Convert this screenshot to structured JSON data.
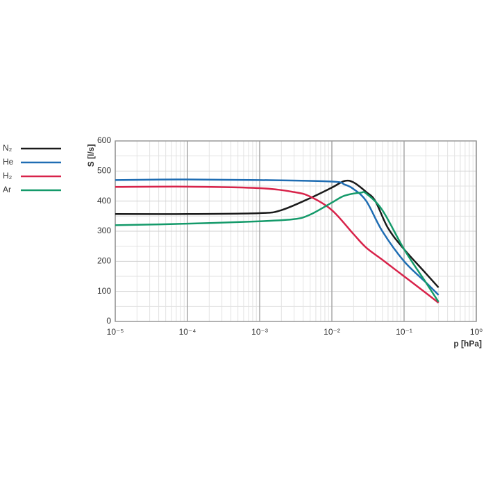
{
  "chart_data": {
    "type": "line",
    "xlabel": "p [hPa]",
    "ylabel": "S [l/s]",
    "xscale": "log",
    "grid": true,
    "legend": "left",
    "xlim": [
      1e-05,
      1
    ],
    "xticks": [
      {
        "value": 1e-05,
        "label": "10⁻⁵"
      },
      {
        "value": 0.0001,
        "label": "10⁻⁴"
      },
      {
        "value": 0.001,
        "label": "10⁻³"
      },
      {
        "value": 0.01,
        "label": "10⁻²"
      },
      {
        "value": 0.1,
        "label": "10⁻¹"
      },
      {
        "value": 1,
        "label": "10⁰"
      }
    ],
    "xminorticks": [
      2e-05,
      3e-05,
      4e-05,
      5e-05,
      6e-05,
      7e-05,
      8e-05,
      9e-05,
      0.0002,
      0.0003,
      0.0004,
      0.0005,
      0.0006,
      0.0007,
      0.0008,
      0.0009,
      0.002,
      0.003,
      0.004,
      0.005,
      0.006,
      0.007,
      0.008,
      0.009,
      0.02,
      0.03,
      0.04,
      0.05,
      0.06,
      0.07,
      0.08,
      0.09,
      0.2,
      0.3,
      0.4,
      0.5,
      0.6,
      0.7,
      0.8,
      0.9
    ],
    "ylim": [
      0,
      600
    ],
    "yticks": [
      0,
      100,
      200,
      300,
      400,
      500,
      600
    ],
    "yminorticks": [
      50,
      150,
      250,
      350,
      450,
      550
    ],
    "series": [
      {
        "name": "N₂",
        "color": "#1a1a1a",
        "x": [
          1e-05,
          0.0001,
          0.001,
          0.002,
          0.005,
          0.01,
          0.015,
          0.02,
          0.03,
          0.04,
          0.06,
          0.1,
          0.2,
          0.3
        ],
        "values": [
          357,
          357,
          360,
          370,
          410,
          445,
          467,
          462,
          430,
          400,
          310,
          240,
          160,
          113
        ]
      },
      {
        "name": "He",
        "color": "#1f6db3",
        "x": [
          1e-05,
          0.0001,
          0.001,
          0.01,
          0.015,
          0.02,
          0.03,
          0.05,
          0.1,
          0.2,
          0.3
        ],
        "values": [
          470,
          472,
          470,
          465,
          455,
          440,
          400,
          300,
          200,
          130,
          88
        ]
      },
      {
        "name": "H₂",
        "color": "#d8234a",
        "x": [
          1e-05,
          0.0001,
          0.001,
          0.003,
          0.005,
          0.01,
          0.02,
          0.03,
          0.05,
          0.1,
          0.2,
          0.3
        ],
        "values": [
          447,
          448,
          443,
          430,
          415,
          370,
          290,
          245,
          205,
          150,
          95,
          62
        ]
      },
      {
        "name": "Ar",
        "color": "#149a6a",
        "x": [
          1e-05,
          0.0001,
          0.001,
          0.003,
          0.005,
          0.01,
          0.015,
          0.025,
          0.03,
          0.05,
          0.1,
          0.2,
          0.3
        ],
        "values": [
          320,
          325,
          333,
          340,
          355,
          395,
          418,
          428,
          425,
          370,
          240,
          130,
          65
        ]
      }
    ]
  }
}
